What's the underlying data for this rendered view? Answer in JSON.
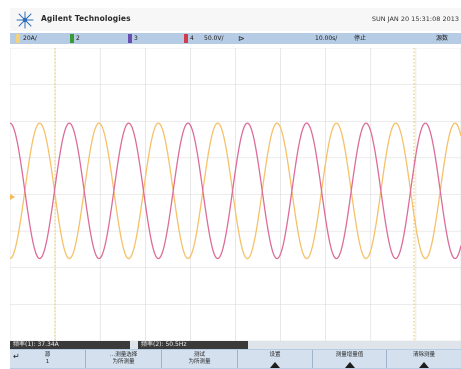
{
  "header": {
    "brand": "Agilent Technologies",
    "datetime": "SUN JAN 20 15:31:08 2013"
  },
  "status": {
    "ch1_scale": "20A/",
    "ch2_label": "2",
    "ch3_label": "3",
    "ch4_label": "4",
    "offset": "50.0V/",
    "timebase": "10.00s/",
    "run_state": "停止",
    "right_item": "源数"
  },
  "colors": {
    "ch1": "#f2d27a",
    "ch2": "#3a9c35",
    "ch3": "#6a4fb3",
    "ch4": "#d23b4d",
    "wave_yellow": "#f5c16a",
    "wave_pink": "#dc6d9a",
    "grid": "#d9d9d9",
    "statusbar": "#b6cbe4"
  },
  "measurements": [
    {
      "label": "频率(1):",
      "value": "37.34A"
    },
    {
      "label": "频率(2):",
      "value": "50.5Hz"
    }
  ],
  "softkeys": [
    {
      "icon": "back-arrow-icon",
      "line1": "源",
      "line2": "1"
    },
    {
      "line1": "…测量选择",
      "line2": "为所测量"
    },
    {
      "line1": "测试",
      "line2": "为所测量"
    },
    {
      "line1": "设置",
      "line2": ""
    },
    {
      "line1": "测量增量值",
      "line2": ""
    },
    {
      "line1": "清除测量",
      "line2": ""
    }
  ],
  "chart_data": {
    "type": "line",
    "title": "",
    "xlabel": "",
    "ylabel": "",
    "grid": true,
    "series": [
      {
        "color": "#f5c16a",
        "waveform": "sine",
        "visible_cycles": 7.6,
        "amplitude_divisions": 1.85,
        "center_division_from_top": 3.9,
        "phase_deg": 180
      },
      {
        "color": "#dc6d9a",
        "waveform": "sine",
        "visible_cycles": 7.6,
        "amplitude_divisions": 1.85,
        "center_division_from_top": 3.9,
        "phase_deg": 0
      }
    ]
  }
}
